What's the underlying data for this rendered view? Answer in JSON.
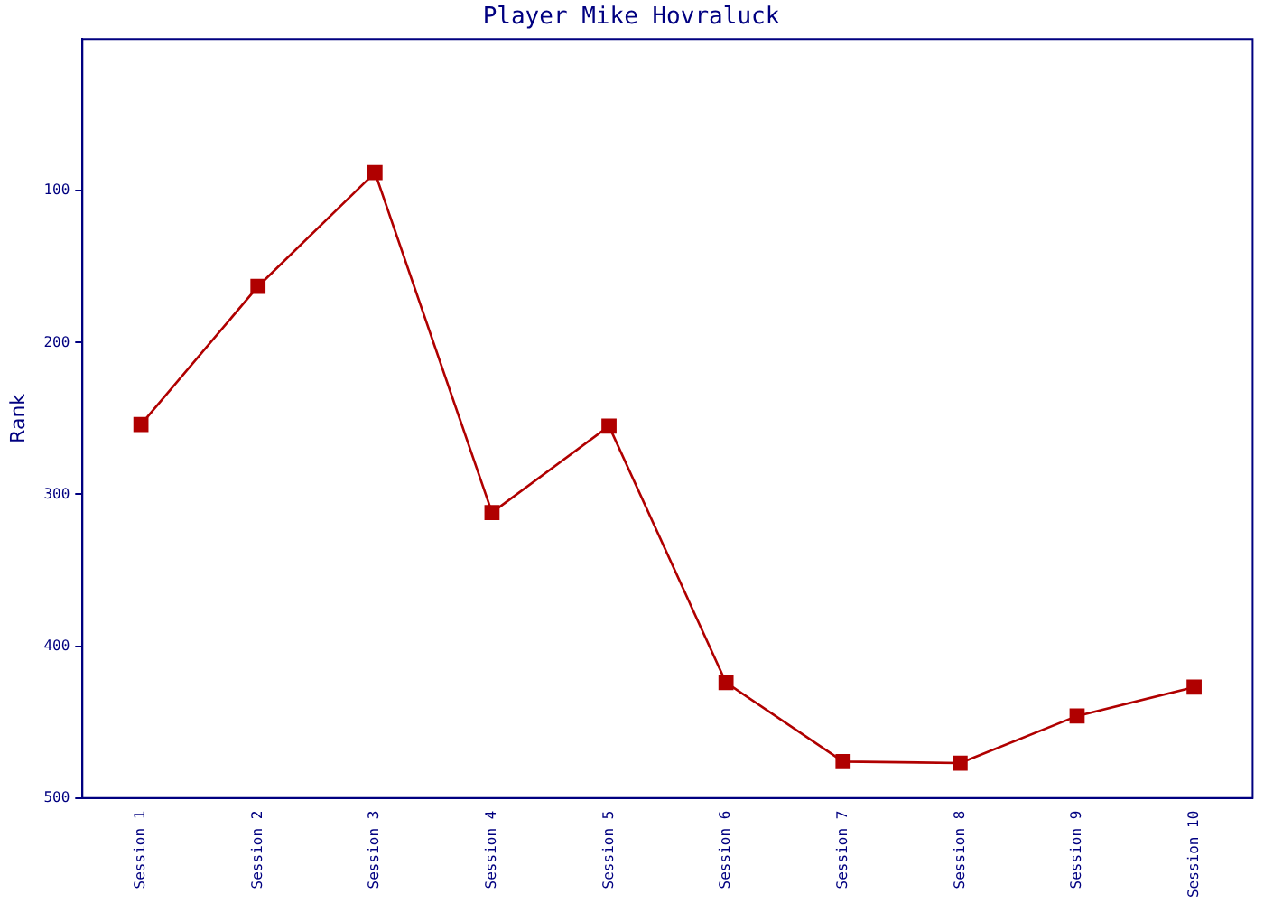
{
  "chart_data": {
    "type": "line",
    "title": "Player Mike Hovraluck",
    "ylabel": "Rank",
    "categories": [
      "Session 1",
      "Session 2",
      "Session 3",
      "Session 4",
      "Session 5",
      "Session 6",
      "Session 7",
      "Session 8",
      "Session 9",
      "Session 10"
    ],
    "series": [
      {
        "color": "#b00000",
        "values": [
          254,
          163,
          88,
          312,
          255,
          424,
          476,
          477,
          446,
          427
        ]
      }
    ],
    "ylim": [
      500,
      0
    ],
    "yticks": [
      100,
      200,
      300,
      400,
      500
    ],
    "grid": false,
    "legend": false,
    "marker": "square",
    "line_style": "solid"
  }
}
